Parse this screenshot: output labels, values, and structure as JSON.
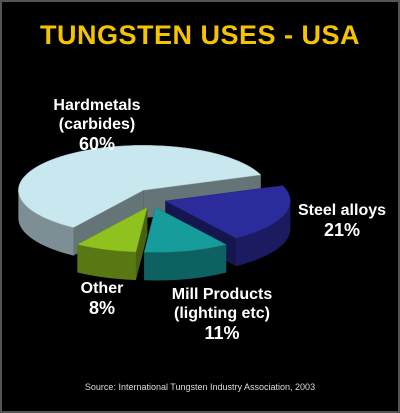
{
  "chart_data": {
    "type": "pie",
    "title": "TUNGSTEN USES - USA",
    "categories": [
      "Hardmetals (carbides)",
      "Steel alloys",
      "Mill Products (lighting etc)",
      "Other"
    ],
    "values": [
      60,
      21,
      11,
      8
    ],
    "value_labels": [
      "60%",
      "21%",
      "11%",
      "8%"
    ],
    "colors": [
      "#c9e7ee",
      "#2b2b9c",
      "#179c9c",
      "#8fc21f"
    ],
    "source": "Source: International Tungsten Industry Association, 2003"
  }
}
